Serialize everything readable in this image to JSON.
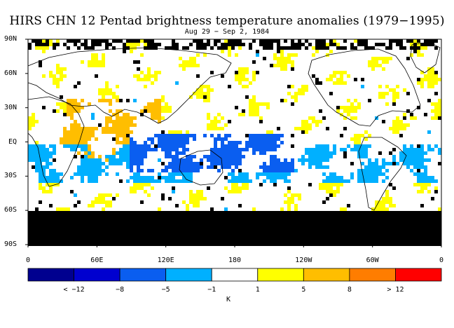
{
  "title": "HIRS CHN 12 Pentad brightness temperature anomalies (1979−1995)",
  "subtitle": "Aug 29 − Sep 2, 1984",
  "lat_labels": [
    "90N",
    "60N",
    "30N",
    "EQ",
    "30S",
    "60S",
    "90S"
  ],
  "lon_labels": [
    "0",
    "60E",
    "120E",
    "180",
    "120W",
    "60W",
    "0"
  ],
  "colorbar": {
    "colors": [
      "#00008f",
      "#0000cf",
      "#0a5ef0",
      "#00b0ff",
      "#ffffff",
      "#ffff00",
      "#ffbe00",
      "#ff7d00",
      "#ff0000"
    ],
    "labels": [
      "< −12",
      "−8",
      "−5",
      "−1",
      "1",
      "5",
      "8",
      "> 12"
    ],
    "unit": "K"
  }
}
